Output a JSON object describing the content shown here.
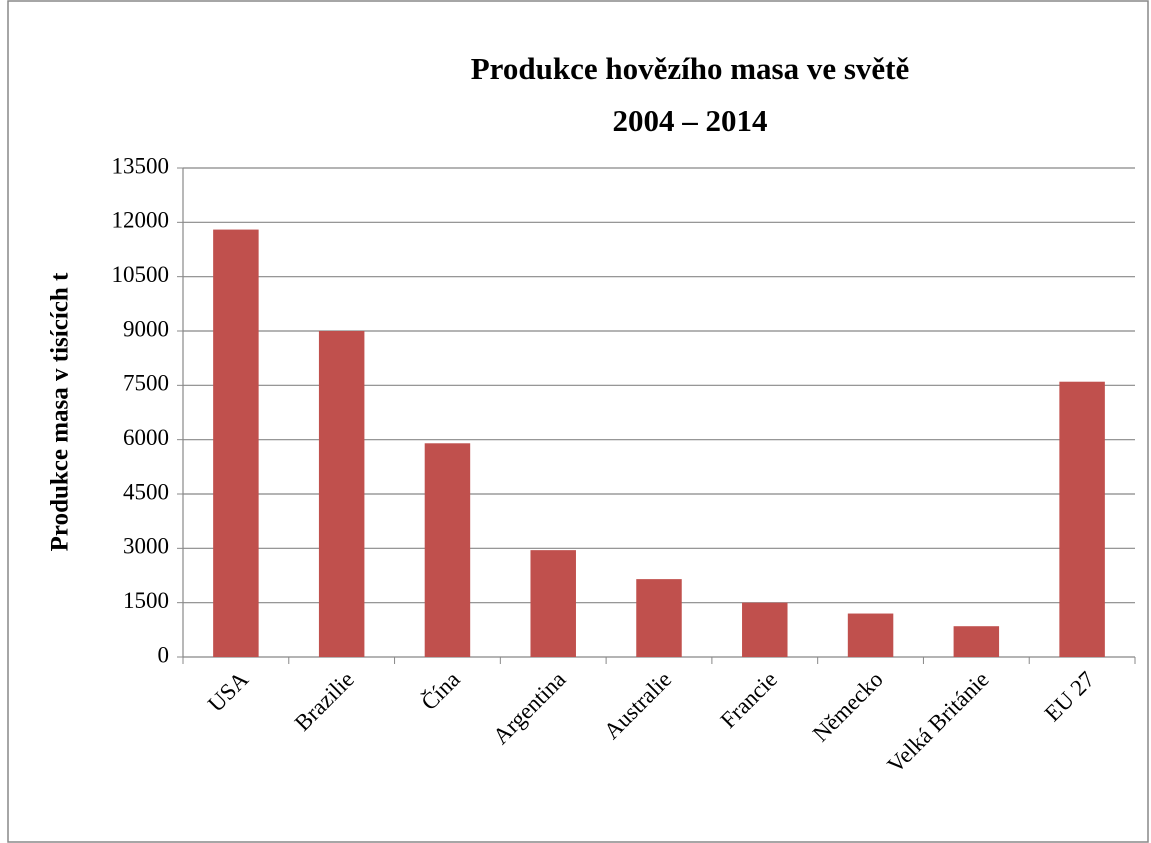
{
  "chart_data": {
    "type": "bar",
    "title": [
      "Produkce hovězího masa ve světě",
      "2004 – 2014"
    ],
    "y_label": "Produkce masa v tisících t",
    "categories": [
      "USA",
      "Brazilie",
      "Čína",
      "Argentina",
      "Australie",
      "Francie",
      "Německo",
      "Velká Británie",
      "EU 27"
    ],
    "values": [
      11800,
      9000,
      5900,
      2950,
      2150,
      1500,
      1200,
      850,
      7600
    ],
    "color": "#c0504d",
    "ylim": [
      0,
      13500
    ],
    "yticks": [
      0,
      1500,
      3000,
      4500,
      6000,
      7500,
      9000,
      10500,
      12000,
      13500
    ],
    "grid": true
  }
}
